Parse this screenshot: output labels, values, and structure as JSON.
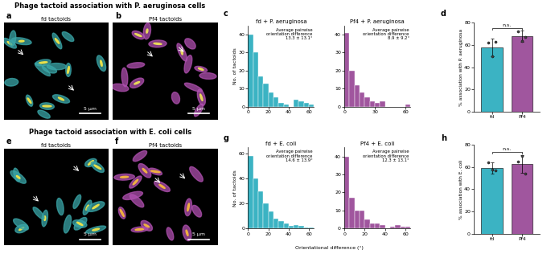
{
  "section_titles": [
    "Phage tactoid association with P. aeruginosa cells",
    "Phage tactoid association with E. coli cells"
  ],
  "images": [
    {
      "panel_label": "a",
      "title": "fd tactoids",
      "scale_bar": "5 µm"
    },
    {
      "panel_label": "b",
      "title": "Pf4 tactoids",
      "scale_bar": "5 µm"
    },
    {
      "panel_label": "e",
      "title": "fd tactoids",
      "scale_bar": "5 µm"
    },
    {
      "panel_label": "f",
      "title": "Pf4 tactoids",
      "scale_bar": "5 µm"
    }
  ],
  "chart_data": [
    {
      "type": "histogram",
      "panel_label": "c",
      "title": "fd + P. aeruginosa",
      "color": "#3bb3c3",
      "bins": [
        0,
        5,
        10,
        15,
        20,
        25,
        30,
        35,
        40,
        45,
        50,
        55,
        60,
        65
      ],
      "counts": [
        40,
        30,
        17,
        13,
        8,
        5,
        2,
        1,
        0,
        4,
        3,
        2,
        1
      ],
      "xlim": [
        0,
        65
      ],
      "xticks": [
        0,
        20,
        40,
        60
      ],
      "ylim": [
        0,
        45
      ],
      "yticks": [
        0,
        10,
        20,
        30,
        40
      ],
      "y_label": "No. of tactoids",
      "annotation": "Average pairwise\norientation difference\n13.3 ± 13.1°"
    },
    {
      "type": "histogram",
      "title": "Pf4 + P. aeruginosa",
      "color": "#a0569e",
      "bins": [
        0,
        5,
        10,
        15,
        20,
        25,
        30,
        35,
        40,
        45,
        50,
        55,
        60,
        65
      ],
      "counts": [
        41,
        20,
        12,
        8,
        5,
        3,
        2,
        3,
        0,
        0,
        0,
        0,
        1
      ],
      "xlim": [
        0,
        65
      ],
      "xticks": [
        0,
        30,
        60
      ],
      "ylim": [
        0,
        45
      ],
      "yticks": [
        0,
        10,
        20,
        30,
        40
      ],
      "annotation": "Average pairwise\norientation difference\n8.9 ± 9.2°"
    },
    {
      "type": "bar",
      "panel_label": "d",
      "categories": [
        "fd",
        "Pf4"
      ],
      "values": [
        58,
        68
      ],
      "errors": [
        8,
        5
      ],
      "points": [
        [
          62,
          50,
          63
        ],
        [
          72,
          64,
          67
        ]
      ],
      "colors": [
        "#3bb3c3",
        "#a0569e"
      ],
      "ylim": [
        0,
        80
      ],
      "yticks": [
        0,
        20,
        40,
        60,
        80
      ],
      "y_label": "% association with P. aeruginosa",
      "annotation": "n.s."
    },
    {
      "type": "histogram",
      "panel_label": "g",
      "title": "fd + E. coli",
      "color": "#3bb3c3",
      "bins": [
        0,
        5,
        10,
        15,
        20,
        25,
        30,
        35,
        40,
        45,
        50,
        55,
        60,
        65
      ],
      "counts": [
        58,
        40,
        30,
        20,
        14,
        8,
        6,
        4,
        2,
        3,
        2,
        1,
        1
      ],
      "xlim": [
        0,
        65
      ],
      "xticks": [
        0,
        20,
        40,
        60
      ],
      "ylim": [
        0,
        65
      ],
      "yticks": [
        0,
        20,
        40,
        60
      ],
      "y_label": "No. of tactoids",
      "x_label": "Orientational difference (°)",
      "annotation": "Average pairwise\norientation difference\n14.6 ± 13.9°"
    },
    {
      "type": "histogram",
      "title": "Pf4 + E. coli",
      "color": "#a0569e",
      "bins": [
        0,
        5,
        10,
        15,
        20,
        25,
        30,
        35,
        40,
        45,
        50,
        55,
        60,
        65
      ],
      "counts": [
        40,
        17,
        10,
        10,
        5,
        3,
        3,
        2,
        0,
        1,
        2,
        1,
        1
      ],
      "xlim": [
        0,
        65
      ],
      "xticks": [
        0,
        20,
        40,
        60
      ],
      "ylim": [
        0,
        45
      ],
      "yticks": [
        0,
        10,
        20,
        30,
        40
      ],
      "annotation": "Average pairwise\norientation difference\n12.3 ± 13.1°"
    },
    {
      "type": "bar",
      "panel_label": "h",
      "categories": [
        "fd",
        "Pf4"
      ],
      "values": [
        59,
        63
      ],
      "errors": [
        5,
        8
      ],
      "points": [
        [
          64,
          58,
          57
        ],
        [
          65,
          70,
          54
        ]
      ],
      "colors": [
        "#3bb3c3",
        "#a0569e"
      ],
      "ylim": [
        0,
        80
      ],
      "yticks": [
        0,
        20,
        40,
        60,
        80
      ],
      "y_label": "% association with E. coli",
      "annotation": "n.s."
    }
  ]
}
